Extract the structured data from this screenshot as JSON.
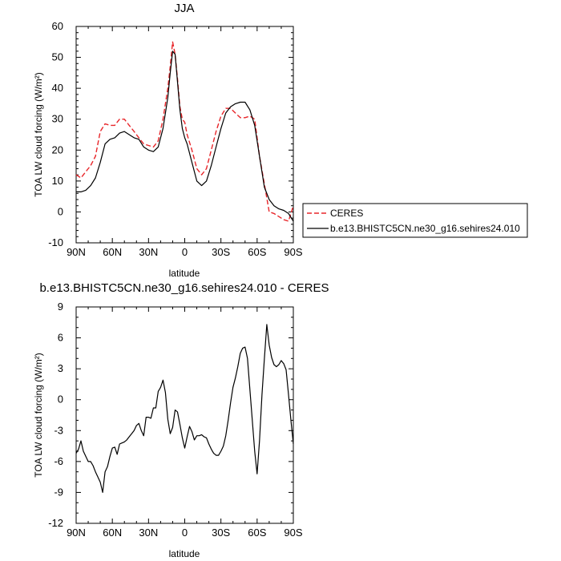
{
  "chart_data": [
    {
      "type": "line",
      "title": "JJA",
      "xlabel": "latitude",
      "ylabel": "TOA LW cloud forcing (W/m²)",
      "ylim": [
        -10,
        60
      ],
      "yticks": [
        -10,
        0,
        10,
        20,
        30,
        40,
        50,
        60
      ],
      "xlim": [
        90,
        -90
      ],
      "xticks": [
        90,
        60,
        30,
        0,
        -30,
        -60,
        -90
      ],
      "xticklabels": [
        "90N",
        "60N",
        "30N",
        "0",
        "30S",
        "60S",
        "90S"
      ],
      "legend_placement": "right, outside plot",
      "series": [
        {
          "name": "CERES",
          "color": "#e8262a",
          "dash": "dashed",
          "x": [
            90,
            86,
            82,
            78,
            74,
            70,
            66,
            62,
            58,
            54,
            50,
            46,
            42,
            38,
            34,
            30,
            26,
            22,
            18,
            14,
            12,
            10,
            8,
            6,
            4,
            2,
            0,
            -2,
            -6,
            -10,
            -14,
            -18,
            -22,
            -26,
            -30,
            -34,
            -38,
            -42,
            -46,
            -50,
            -54,
            -58,
            -62,
            -66,
            -70,
            -74,
            -78,
            -82,
            -86,
            -90
          ],
          "y": [
            12,
            11,
            13,
            15,
            18,
            26,
            28.5,
            28,
            28,
            30,
            30,
            28,
            26,
            24,
            22,
            21.5,
            21,
            23,
            30,
            40,
            47,
            55,
            51,
            43,
            34,
            30,
            29,
            25,
            20,
            14,
            12,
            14,
            20,
            26,
            31,
            33.5,
            33.5,
            32,
            30.5,
            30.5,
            31,
            30,
            18,
            9,
            0,
            -0.5,
            -1.5,
            -2.5,
            -3,
            2
          ]
        },
        {
          "name": "b.e13.BHISTC5CN.ne30_g16.sehires24.010",
          "color": "#000000",
          "dash": "solid",
          "x": [
            90,
            86,
            82,
            78,
            74,
            70,
            66,
            62,
            58,
            54,
            50,
            46,
            42,
            38,
            34,
            30,
            26,
            22,
            18,
            14,
            12,
            10,
            8,
            6,
            4,
            2,
            0,
            -2,
            -6,
            -10,
            -14,
            -18,
            -22,
            -26,
            -30,
            -34,
            -38,
            -42,
            -46,
            -50,
            -54,
            -58,
            -62,
            -66,
            -70,
            -74,
            -78,
            -82,
            -86,
            -90
          ],
          "y": [
            6.5,
            6.5,
            7,
            8.5,
            11,
            16,
            22,
            23.5,
            24,
            25.5,
            26,
            25,
            24,
            23.5,
            21,
            20,
            19.5,
            21,
            27,
            37,
            45,
            52,
            51,
            42,
            33,
            27,
            24,
            22,
            16,
            10,
            8.5,
            10,
            15,
            21,
            27,
            32,
            34,
            35,
            35.5,
            35.5,
            33,
            28,
            18,
            8,
            4,
            2,
            1,
            0.5,
            -0.5,
            -3
          ]
        }
      ]
    },
    {
      "type": "line",
      "title": "b.e13.BHISTC5CN.ne30_g16.sehires24.010 - CERES",
      "xlabel": "latitude",
      "ylabel": "TOA LW cloud forcing (W/m²)",
      "ylim": [
        -12,
        9
      ],
      "yticks": [
        -12,
        -9,
        -6,
        -3,
        0,
        3,
        6,
        9
      ],
      "xlim": [
        90,
        -90
      ],
      "xticks": [
        90,
        60,
        30,
        0,
        -30,
        -60,
        -90
      ],
      "xticklabels": [
        "90N",
        "60N",
        "30N",
        "0",
        "30S",
        "60S",
        "90S"
      ],
      "series": [
        {
          "color": "#000000",
          "x": [
            90,
            88,
            86,
            84,
            82,
            80,
            78,
            76,
            74,
            72,
            70,
            68,
            66,
            64,
            62,
            60,
            58,
            56,
            54,
            52,
            50,
            48,
            46,
            44,
            42,
            40,
            38,
            36,
            34,
            32,
            30,
            28,
            26,
            24,
            22,
            20,
            18,
            16,
            14,
            12,
            10,
            8,
            6,
            4,
            2,
            0,
            -2,
            -4,
            -6,
            -8,
            -10,
            -12,
            -14,
            -16,
            -18,
            -20,
            -22,
            -24,
            -26,
            -28,
            -30,
            -32,
            -34,
            -36,
            -38,
            -40,
            -42,
            -44,
            -46,
            -48,
            -50,
            -52,
            -54,
            -56,
            -58,
            -60,
            -62,
            -64,
            -66,
            -68,
            -70,
            -72,
            -74,
            -76,
            -78,
            -80,
            -82,
            -84,
            -86,
            -88,
            -90
          ],
          "y": [
            -5.2,
            -4.8,
            -4,
            -5,
            -5.5,
            -6,
            -6,
            -6.4,
            -7,
            -7.5,
            -8,
            -9,
            -7,
            -6.5,
            -5.5,
            -4.7,
            -4.6,
            -5.3,
            -4.3,
            -4.2,
            -4.1,
            -3.9,
            -3.6,
            -3.3,
            -3,
            -2.5,
            -2.3,
            -3,
            -3.5,
            -1.7,
            -1.7,
            -1.8,
            -0.8,
            -0.8,
            0.8,
            1.2,
            1.9,
            0.7,
            -1.9,
            -3.3,
            -2.7,
            -1,
            -1.2,
            -2.4,
            -3.7,
            -4.7,
            -3.6,
            -2.6,
            -3.1,
            -3.9,
            -3.5,
            -3.5,
            -3.4,
            -3.6,
            -3.7,
            -4.3,
            -4.8,
            -5.2,
            -5.4,
            -5.4,
            -5,
            -4.5,
            -3.5,
            -2,
            -0.3,
            1.2,
            2.1,
            3.2,
            4.5,
            5,
            5.1,
            4,
            1,
            -2,
            -5,
            -7.2,
            -4,
            0.5,
            4,
            7.3,
            5.3,
            4.1,
            3.4,
            3.2,
            3.4,
            3.8,
            3.5,
            2.9,
            0.5,
            -2,
            -4.3
          ]
        }
      ]
    }
  ]
}
